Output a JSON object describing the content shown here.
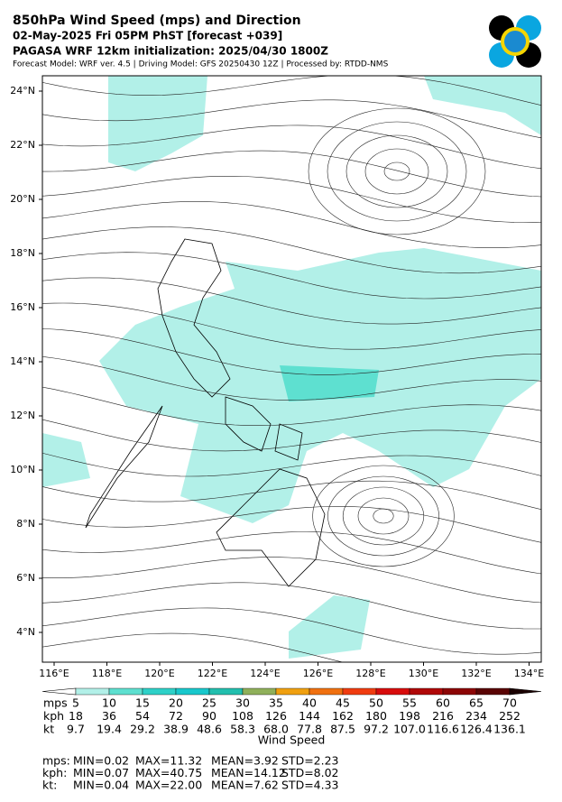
{
  "header": {
    "title": "850hPa Wind Speed (mps) and Direction",
    "subtitle": "02-May-2025 Fri 05PM PhST [forecast +039]",
    "init": "PAGASA WRF 12km initialization: 2025/04/30 1800Z",
    "info": "Forecast Model: WRF ver. 4.5 | Driving Model: GFS 20250430 12Z | Processed by: RTDD-NMS"
  },
  "map": {
    "lat_labels": [
      "24°N",
      "22°N",
      "20°N",
      "18°N",
      "16°N",
      "14°N",
      "12°N",
      "10°N",
      "8°N",
      "6°N",
      "4°N"
    ],
    "lon_labels": [
      "116°E",
      "118°E",
      "120°E",
      "122°E",
      "124°E",
      "126°E",
      "128°E",
      "130°E",
      "132°E",
      "134°E"
    ]
  },
  "colorbar": {
    "title": "Wind Speed",
    "units": [
      "mps",
      "kph",
      "kt"
    ],
    "mps": [
      5,
      10,
      15,
      20,
      25,
      30,
      35,
      40,
      45,
      50,
      55,
      60,
      65,
      70
    ],
    "kph": [
      18,
      36,
      54,
      72,
      90,
      108,
      126,
      144,
      162,
      180,
      198,
      216,
      234,
      252
    ],
    "kt": [
      "9.7",
      "19.4",
      "29.2",
      "38.9",
      "48.6",
      "58.3",
      "68.0",
      "77.8",
      "87.5",
      "97.2",
      "107.0",
      "116.6",
      "126.4",
      "136.1"
    ],
    "colors": [
      "#ffffff",
      "#b2f0e8",
      "#5ee0d0",
      "#2ed1c8",
      "#18c8cc",
      "#22bfae",
      "#8fb05a",
      "#f0a010",
      "#f07010",
      "#f03c10",
      "#d80c0c",
      "#b00808",
      "#8c0606",
      "#5a0404",
      "#1a0000"
    ]
  },
  "stats": [
    {
      "unit": "mps:",
      "min": "MIN=0.02",
      "max": "MAX=11.32",
      "mean": "MEAN=3.92",
      "std": "STD=2.23"
    },
    {
      "unit": "kph:",
      "min": "MIN=0.07",
      "max": "MAX=40.75",
      "mean": "MEAN=14.12",
      "std": "STD=8.02"
    },
    {
      "unit": "kt:",
      "min": "MIN=0.04",
      "max": "MAX=22.00",
      "mean": "MEAN=7.62",
      "std": "STD=4.33"
    }
  ]
}
